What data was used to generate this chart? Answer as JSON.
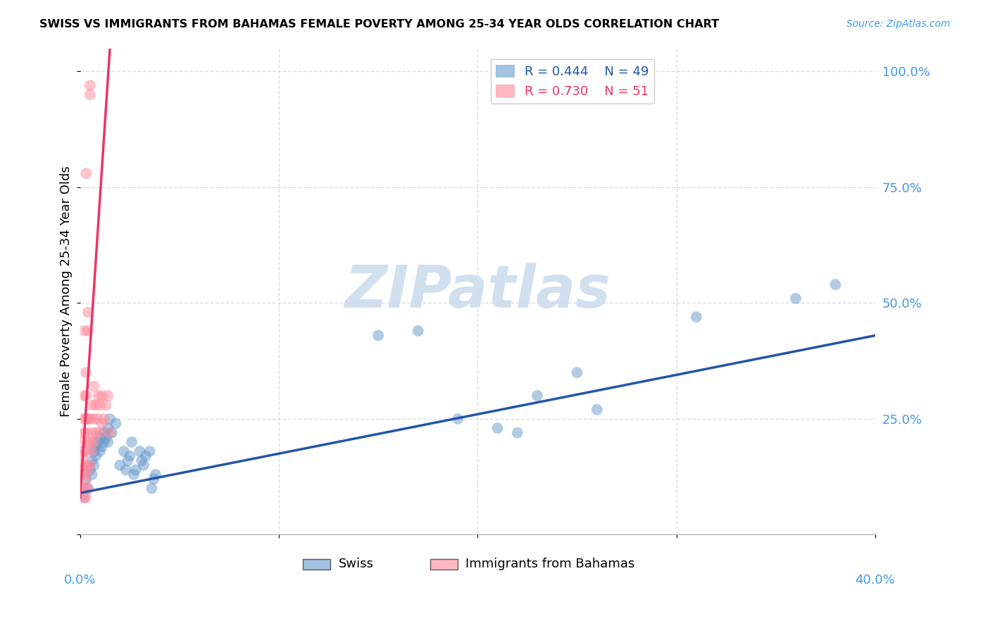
{
  "title": "SWISS VS IMMIGRANTS FROM BAHAMAS FEMALE POVERTY AMONG 25-34 YEAR OLDS CORRELATION CHART",
  "source": "Source: ZipAtlas.com",
  "ylabel": "Female Poverty Among 25-34 Year Olds",
  "ytick_labels": [
    "",
    "25.0%",
    "50.0%",
    "75.0%",
    "100.0%"
  ],
  "ytick_values": [
    0,
    0.25,
    0.5,
    0.75,
    1.0
  ],
  "xlim": [
    0.0,
    0.4
  ],
  "ylim": [
    0.0,
    1.05
  ],
  "legend_R_swiss": "R = 0.444",
  "legend_N_swiss": "N = 49",
  "legend_R_immigrants": "R = 0.730",
  "legend_N_immigrants": "N = 51",
  "swiss_color": "#6699CC",
  "immigrants_color": "#FF8899",
  "swiss_line_color": "#2255AA",
  "immigrants_line_color": "#EE3366",
  "swiss_scatter": [
    [
      0.002,
      0.08
    ],
    [
      0.003,
      0.12
    ],
    [
      0.004,
      0.1
    ],
    [
      0.005,
      0.14
    ],
    [
      0.006,
      0.13
    ],
    [
      0.006,
      0.16
    ],
    [
      0.007,
      0.18
    ],
    [
      0.007,
      0.15
    ],
    [
      0.008,
      0.17
    ],
    [
      0.008,
      0.19
    ],
    [
      0.009,
      0.2
    ],
    [
      0.01,
      0.18
    ],
    [
      0.01,
      0.21
    ],
    [
      0.011,
      0.19
    ],
    [
      0.012,
      0.22
    ],
    [
      0.012,
      0.2
    ],
    [
      0.013,
      0.21
    ],
    [
      0.014,
      0.23
    ],
    [
      0.014,
      0.2
    ],
    [
      0.015,
      0.25
    ],
    [
      0.016,
      0.22
    ],
    [
      0.018,
      0.24
    ],
    [
      0.02,
      0.15
    ],
    [
      0.022,
      0.18
    ],
    [
      0.023,
      0.14
    ],
    [
      0.024,
      0.16
    ],
    [
      0.025,
      0.17
    ],
    [
      0.026,
      0.2
    ],
    [
      0.027,
      0.13
    ],
    [
      0.028,
      0.14
    ],
    [
      0.03,
      0.18
    ],
    [
      0.031,
      0.16
    ],
    [
      0.032,
      0.15
    ],
    [
      0.033,
      0.17
    ],
    [
      0.035,
      0.18
    ],
    [
      0.036,
      0.1
    ],
    [
      0.037,
      0.12
    ],
    [
      0.038,
      0.13
    ],
    [
      0.15,
      0.43
    ],
    [
      0.17,
      0.44
    ],
    [
      0.19,
      0.25
    ],
    [
      0.21,
      0.23
    ],
    [
      0.22,
      0.22
    ],
    [
      0.23,
      0.3
    ],
    [
      0.25,
      0.35
    ],
    [
      0.26,
      0.27
    ],
    [
      0.31,
      0.47
    ],
    [
      0.36,
      0.51
    ],
    [
      0.38,
      0.54
    ]
  ],
  "immigrants_scatter": [
    [
      0.001,
      0.1
    ],
    [
      0.001,
      0.14
    ],
    [
      0.001,
      0.17
    ],
    [
      0.001,
      0.2
    ],
    [
      0.002,
      0.1
    ],
    [
      0.002,
      0.13
    ],
    [
      0.002,
      0.15
    ],
    [
      0.002,
      0.18
    ],
    [
      0.002,
      0.22
    ],
    [
      0.002,
      0.25
    ],
    [
      0.002,
      0.3
    ],
    [
      0.002,
      0.44
    ],
    [
      0.003,
      0.12
    ],
    [
      0.003,
      0.15
    ],
    [
      0.003,
      0.18
    ],
    [
      0.003,
      0.22
    ],
    [
      0.003,
      0.25
    ],
    [
      0.003,
      0.3
    ],
    [
      0.003,
      0.35
    ],
    [
      0.003,
      0.78
    ],
    [
      0.004,
      0.1
    ],
    [
      0.004,
      0.14
    ],
    [
      0.004,
      0.2
    ],
    [
      0.004,
      0.25
    ],
    [
      0.004,
      0.44
    ],
    [
      0.004,
      0.48
    ],
    [
      0.005,
      0.15
    ],
    [
      0.005,
      0.2
    ],
    [
      0.005,
      0.25
    ],
    [
      0.005,
      0.95
    ],
    [
      0.005,
      0.97
    ],
    [
      0.006,
      0.18
    ],
    [
      0.006,
      0.22
    ],
    [
      0.006,
      0.28
    ],
    [
      0.007,
      0.2
    ],
    [
      0.007,
      0.25
    ],
    [
      0.007,
      0.32
    ],
    [
      0.008,
      0.22
    ],
    [
      0.008,
      0.28
    ],
    [
      0.009,
      0.25
    ],
    [
      0.009,
      0.3
    ],
    [
      0.01,
      0.22
    ],
    [
      0.01,
      0.28
    ],
    [
      0.011,
      0.24
    ],
    [
      0.011,
      0.3
    ],
    [
      0.012,
      0.25
    ],
    [
      0.013,
      0.28
    ],
    [
      0.014,
      0.3
    ],
    [
      0.015,
      0.22
    ],
    [
      0.002,
      0.08
    ],
    [
      0.003,
      0.08
    ]
  ],
  "swiss_reg_line": [
    [
      0.0,
      0.09
    ],
    [
      0.4,
      0.43
    ]
  ],
  "immigrants_reg_line": [
    [
      0.0,
      0.08
    ],
    [
      0.015,
      1.05
    ]
  ],
  "watermark": "ZIPatlas",
  "watermark_color": "#CCDDEE",
  "grid_color": "#DDDDDD",
  "background_color": "#FFFFFF",
  "tick_color": "#4499EE"
}
